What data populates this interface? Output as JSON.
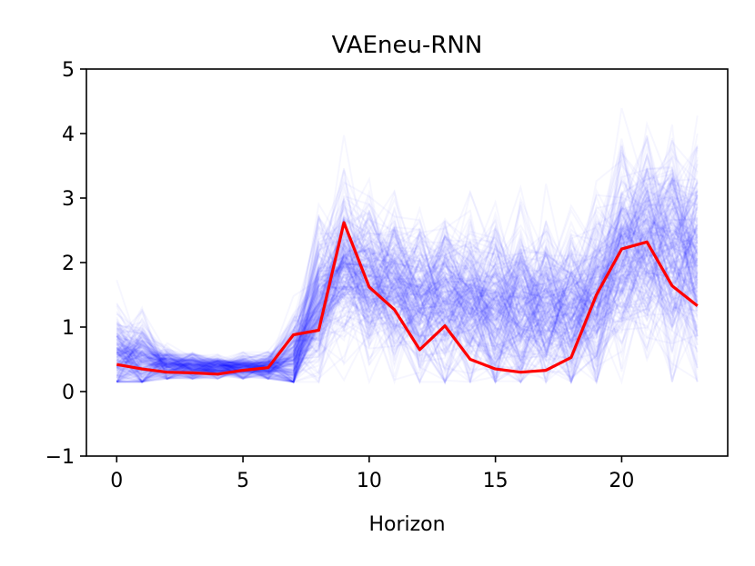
{
  "chart_data": {
    "type": "line",
    "title": "VAEneu-RNN",
    "xlabel": "Horizon",
    "ylabel": "",
    "xlim": [
      -1.2,
      24.2
    ],
    "ylim": [
      -1,
      5
    ],
    "xticks": [
      0,
      5,
      10,
      15,
      20
    ],
    "yticks": [
      -1,
      0,
      1,
      2,
      3,
      4,
      5
    ],
    "grid": false,
    "series": [
      {
        "name": "",
        "color": "#ff0000",
        "x": [
          0,
          1,
          2,
          3,
          4,
          5,
          6,
          7,
          8,
          9,
          10,
          11,
          12,
          13,
          14,
          15,
          16,
          17,
          18,
          19,
          20,
          21,
          22,
          23
        ],
        "values": [
          0.42,
          0.35,
          0.3,
          0.29,
          0.27,
          0.33,
          0.37,
          0.88,
          0.95,
          2.62,
          1.62,
          1.27,
          0.65,
          1.02,
          0.5,
          0.35,
          0.3,
          0.33,
          0.53,
          1.5,
          2.21,
          2.32,
          1.64,
          1.33
        ]
      }
    ],
    "ensemble": {
      "color": "#0000ff",
      "description_samples_count": 260,
      "mean": [
        0.55,
        0.48,
        0.4,
        0.38,
        0.37,
        0.37,
        0.38,
        0.5,
        1.35,
        2.0,
        1.75,
        1.6,
        1.45,
        1.42,
        1.38,
        1.32,
        1.25,
        1.18,
        1.2,
        1.45,
        2.05,
        2.25,
        2.2,
        2.05
      ],
      "spread": [
        0.45,
        0.38,
        0.18,
        0.14,
        0.12,
        0.12,
        0.14,
        0.4,
        0.7,
        0.75,
        0.7,
        0.72,
        0.75,
        0.78,
        0.8,
        0.82,
        0.82,
        0.8,
        0.78,
        0.85,
        0.95,
        1.0,
        1.05,
        1.05
      ]
    }
  }
}
